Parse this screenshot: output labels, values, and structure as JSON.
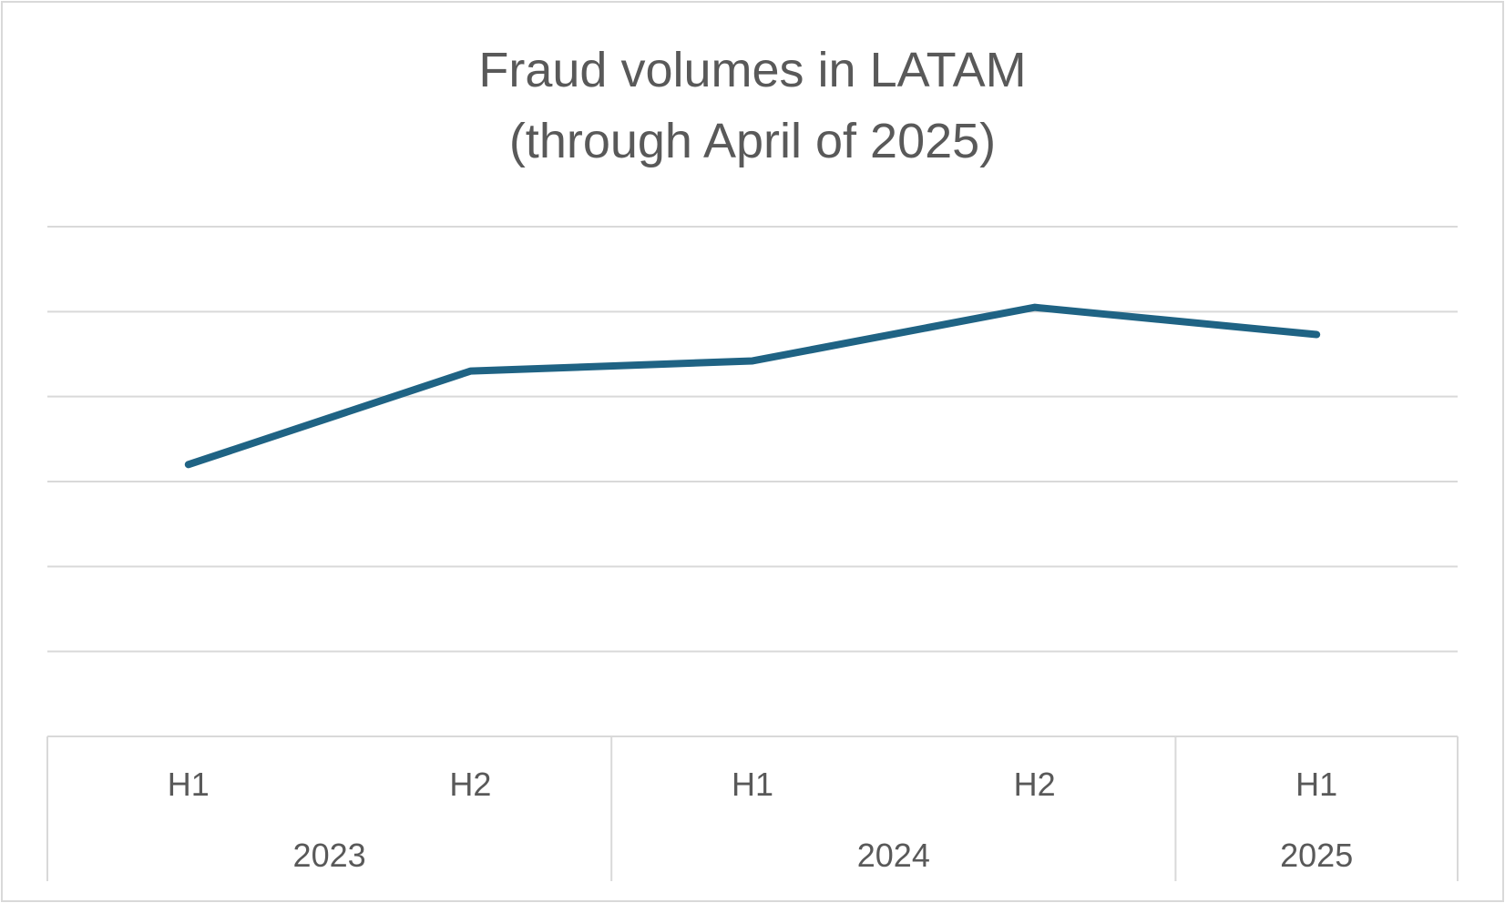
{
  "chart_data": {
    "type": "line",
    "title": "Fraud volumes in LATAM",
    "subtitle": "(through April of 2025)",
    "xlabel": "",
    "ylabel": "",
    "categories": [
      "H1",
      "H2",
      "H1",
      "H2",
      "H1"
    ],
    "groups": [
      {
        "label": "2023",
        "count": 2
      },
      {
        "label": "2024",
        "count": 2
      },
      {
        "label": "2025",
        "count": 1
      }
    ],
    "series": [
      {
        "values": [
          3.2,
          4.3,
          4.42,
          5.05,
          4.73
        ]
      }
    ],
    "ylim": [
      0,
      6
    ],
    "y_gridlines": [
      1,
      2,
      3,
      4,
      5,
      6
    ],
    "y_tick_labels_shown": false,
    "grid": true,
    "legend": "none",
    "colors": {
      "line": "#1f6384",
      "grid": "#d9d9d9",
      "text": "#595959"
    }
  }
}
